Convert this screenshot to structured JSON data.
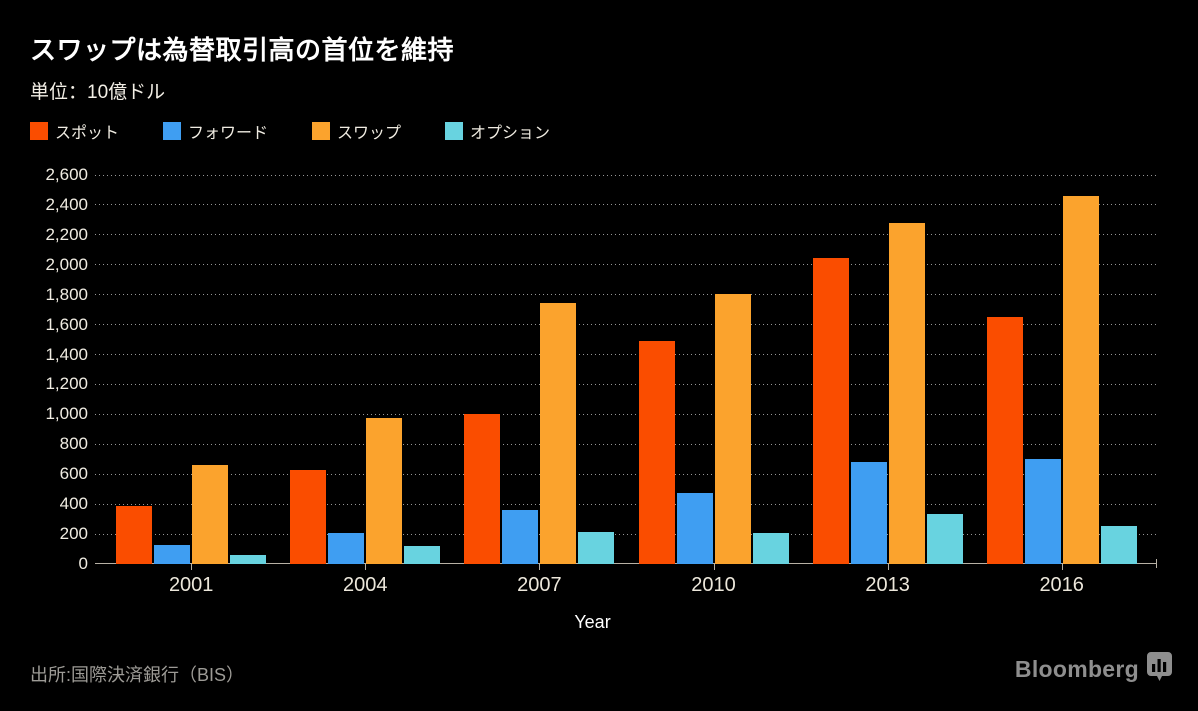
{
  "header": {
    "title": "スワップは為替取引高の首位を維持",
    "subtitle": "単位：10億ドル"
  },
  "chart_data": {
    "type": "bar",
    "title": "スワップは為替取引高の首位を維持",
    "subtitle": "単位：10億ドル",
    "xlabel": "Year",
    "ylabel": "",
    "categories": [
      "2001",
      "2004",
      "2007",
      "2010",
      "2013",
      "2016"
    ],
    "series": [
      {
        "name": "スポット",
        "key": "spot",
        "color": "#fa4d00",
        "values": [
          386,
          631,
          1005,
          1489,
          2047,
          1652
        ]
      },
      {
        "name": "フォワード",
        "key": "forward",
        "color": "#3f9ef2",
        "values": [
          130,
          209,
          362,
          475,
          680,
          700
        ]
      },
      {
        "name": "スワップ",
        "key": "swap",
        "color": "#fba32d",
        "values": [
          663,
          975,
          1745,
          1802,
          2282,
          2460
        ]
      },
      {
        "name": "オプション",
        "key": "option",
        "color": "#68d3e0",
        "values": [
          60,
          119,
          212,
          207,
          337,
          254
        ]
      }
    ],
    "ylim": [
      0,
      2600
    ],
    "ytick_step": 200,
    "grid": "horizontal-dotted",
    "legend_position": "top"
  },
  "footer": {
    "source": "出所:国際決済銀行（BIS）",
    "brand": "Bloomberg",
    "brand_icon": "bar-chart-bubble-icon"
  },
  "colors": {
    "background": "#000000",
    "title_text": "#ffffff",
    "axis_text": "#f0ece2",
    "gridline": "#979797",
    "axis_line": "#b7b1a5",
    "source_text": "#9d9b96",
    "brand_gray": "#8e8e8e"
  }
}
